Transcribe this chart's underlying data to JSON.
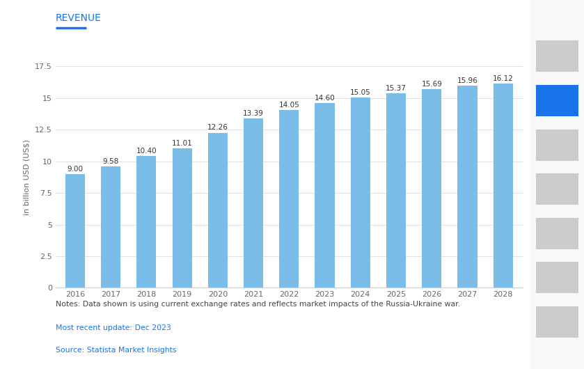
{
  "title": "REVENUE",
  "title_color": "#1a73e8",
  "title_underline_color": "#1a73e8",
  "years": [
    2016,
    2017,
    2018,
    2019,
    2020,
    2021,
    2022,
    2023,
    2024,
    2025,
    2026,
    2027,
    2028
  ],
  "values": [
    9.0,
    9.58,
    10.4,
    11.01,
    12.26,
    13.39,
    14.05,
    14.6,
    15.05,
    15.37,
    15.69,
    15.96,
    16.12
  ],
  "bar_color": "#7abde8",
  "ylabel": "in billion USD (US$)",
  "ylim": [
    0,
    17.5
  ],
  "yticks": [
    0,
    2.5,
    5,
    7.5,
    10,
    12.5,
    15,
    17.5
  ],
  "background_color": "#ffffff",
  "grid_color": "#e0e0e0",
  "axis_color": "#d0d0d0",
  "label_fontsize": 8,
  "value_label_fontsize": 7.5,
  "ylabel_fontsize": 8,
  "xlabel_fontsize": 8,
  "note1": "Notes: Data shown is using current exchange rates and reflects market impacts of the Russia-Ukraine war.",
  "note2": "Most recent update: Dec 2023",
  "note3": "Source: Statista Market Insights",
  "note_color": "#444444",
  "note2_color": "#1a73e8",
  "note3_color": "#1a73e8"
}
